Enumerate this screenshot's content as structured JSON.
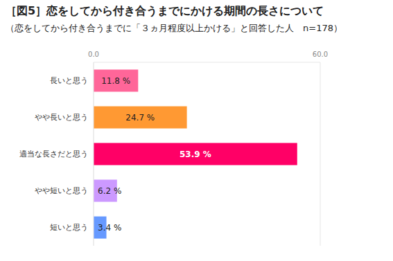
{
  "chart_data": {
    "type": "bar",
    "orientation": "horizontal",
    "title": "［図5］恋をしてから付き合うまでにかける期間の長さについて",
    "subtitle": "（恋をしてから付き合うまでに「３ヵ月程度以上かける」と回答した人　n=178）",
    "categories": [
      "長いと思う",
      "やや長いと思う",
      "適当な長さだと思う",
      "やや短いと思う",
      "短いと思う"
    ],
    "values": [
      11.8,
      24.7,
      53.9,
      6.2,
      3.4
    ],
    "value_labels": [
      "11.8 %",
      "24.7 %",
      "53.9 %",
      "6.2 %",
      "3.4 %"
    ],
    "colors": [
      "#ff6699",
      "#ff9933",
      "#ff0066",
      "#cc99ff",
      "#6699ff"
    ],
    "xlim": [
      0,
      60
    ],
    "xticks": [
      {
        "value": 0,
        "label": "0.0"
      },
      {
        "value": 60,
        "label": "60.0"
      }
    ],
    "grid": true,
    "data_labels": true
  }
}
